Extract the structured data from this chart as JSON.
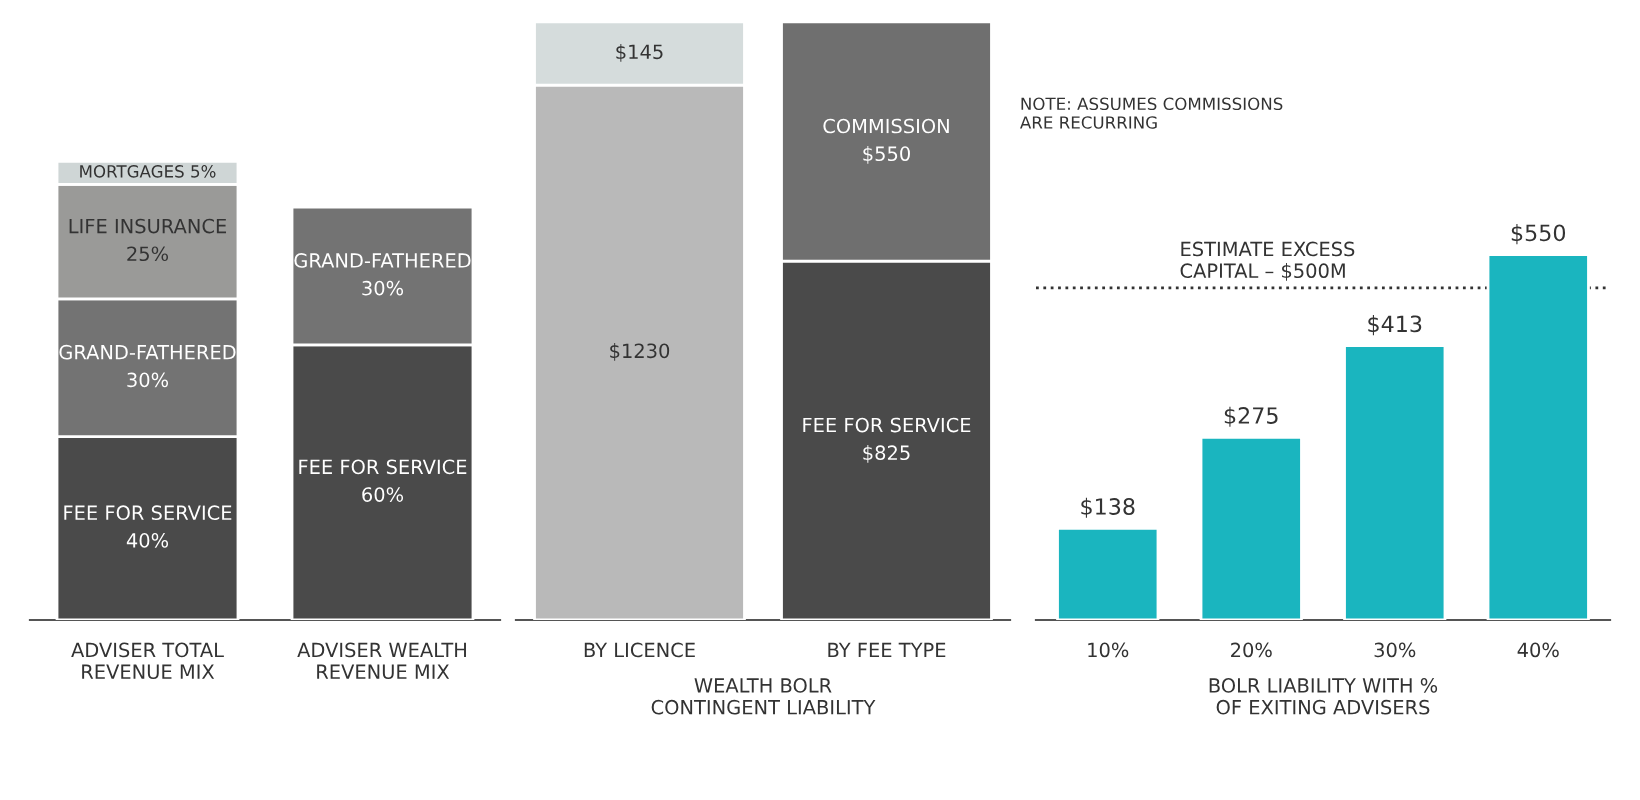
{
  "chart_data": [
    {
      "type": "bar",
      "stacked": true,
      "tick_labels": "x",
      "categories": [
        "ADVISER TOTAL\nREVENUE MIX",
        "ADVISER WEALTH\nREVENUE MIX"
      ],
      "series": [
        {
          "name": "FEE FOR SERVICE",
          "color": "#4a4a4a",
          "values": [
            40,
            60
          ],
          "value_labels": [
            "40%",
            "60%"
          ]
        },
        {
          "name": "GRAND-FATHERED",
          "color": "#737373",
          "values": [
            30,
            30
          ],
          "value_labels": [
            "30%",
            "30%"
          ]
        },
        {
          "name": "LIFE INSURANCE",
          "color": "#9a9a98",
          "values": [
            25,
            null
          ],
          "value_labels": [
            "25%",
            null
          ]
        },
        {
          "name": "MORTGAGES",
          "color": "#cfd6d6",
          "values": [
            5,
            null
          ],
          "value_labels": [
            "5%",
            null
          ]
        }
      ]
    },
    {
      "type": "bar",
      "stacked": true,
      "tick_labels": "x",
      "categories": [
        "BY LICENCE",
        "BY FEE TYPE"
      ],
      "xlabel": "WEALTH BOLR\nCONTINGENT LIABILITY",
      "annotations": [
        "NOTE: ASSUMES COMMISSIONS\nARE RECURRING"
      ],
      "series": [
        {
          "color": "#b9b9b9",
          "values": [
            1230,
            null
          ],
          "value_labels": [
            "$1230",
            null
          ]
        },
        {
          "color": "#d5dcdc",
          "values": [
            145,
            null
          ],
          "value_labels": [
            "$145",
            null
          ]
        },
        {
          "name": "FEE FOR SERVICE",
          "color": "#4a4a4a",
          "values": [
            null,
            825
          ],
          "value_labels": [
            null,
            "$825"
          ]
        },
        {
          "name": "COMMISSION",
          "color": "#6f6f6f",
          "values": [
            null,
            550
          ],
          "value_labels": [
            null,
            "$550"
          ]
        }
      ]
    },
    {
      "type": "bar",
      "tick_labels": "x",
      "categories": [
        "10%",
        "20%",
        "30%",
        "40%"
      ],
      "xlabel": "BOLR LIABILITY WITH %\nOF EXITING ADVISERS",
      "color": "#1ab5bf",
      "values": [
        138,
        275,
        413,
        550
      ],
      "value_labels": [
        "$138",
        "$275",
        "$413",
        "$550"
      ],
      "ref_lines": [
        {
          "axis": "y",
          "value": 500,
          "label": "ESTIMATE EXCESS\nCAPITAL – $500M",
          "color": "#333333",
          "line_style": "dotted"
        }
      ]
    }
  ]
}
